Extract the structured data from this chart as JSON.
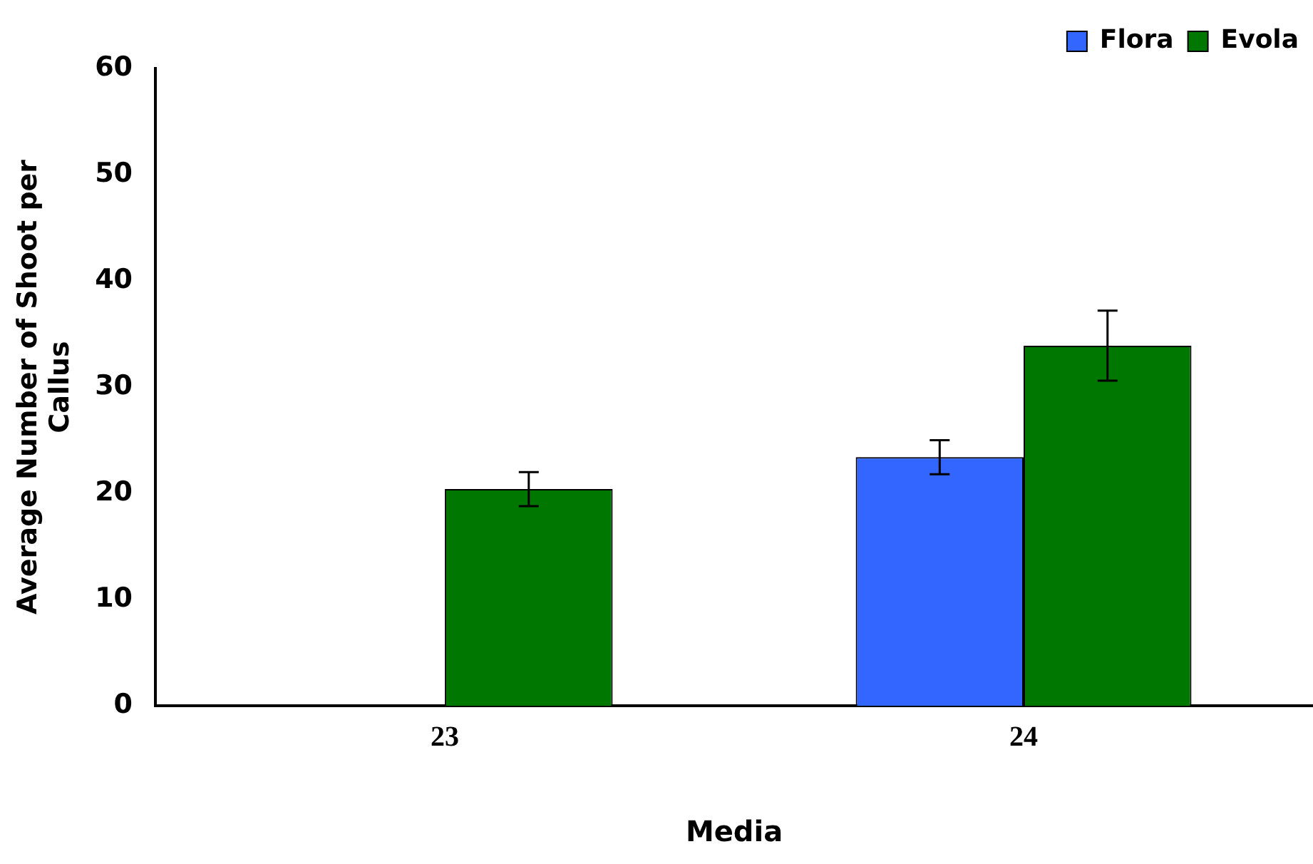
{
  "chart_data": {
    "type": "bar",
    "xlabel": "Media",
    "ylabel": "Average Number of Shoot per Callus",
    "categories": [
      "23",
      "24"
    ],
    "series": [
      {
        "name": "Flora",
        "color": "#3366ff",
        "values": [
          null,
          23.4
        ],
        "errors": [
          null,
          1.6
        ]
      },
      {
        "name": "Evola",
        "color": "#007700",
        "values": [
          20.4,
          33.9
        ],
        "errors": [
          1.6,
          3.3
        ]
      }
    ],
    "ylim": [
      0,
      60
    ],
    "yticks": [
      0,
      10,
      20,
      30,
      40,
      50,
      60
    ],
    "grid": false,
    "legend": "top right"
  }
}
